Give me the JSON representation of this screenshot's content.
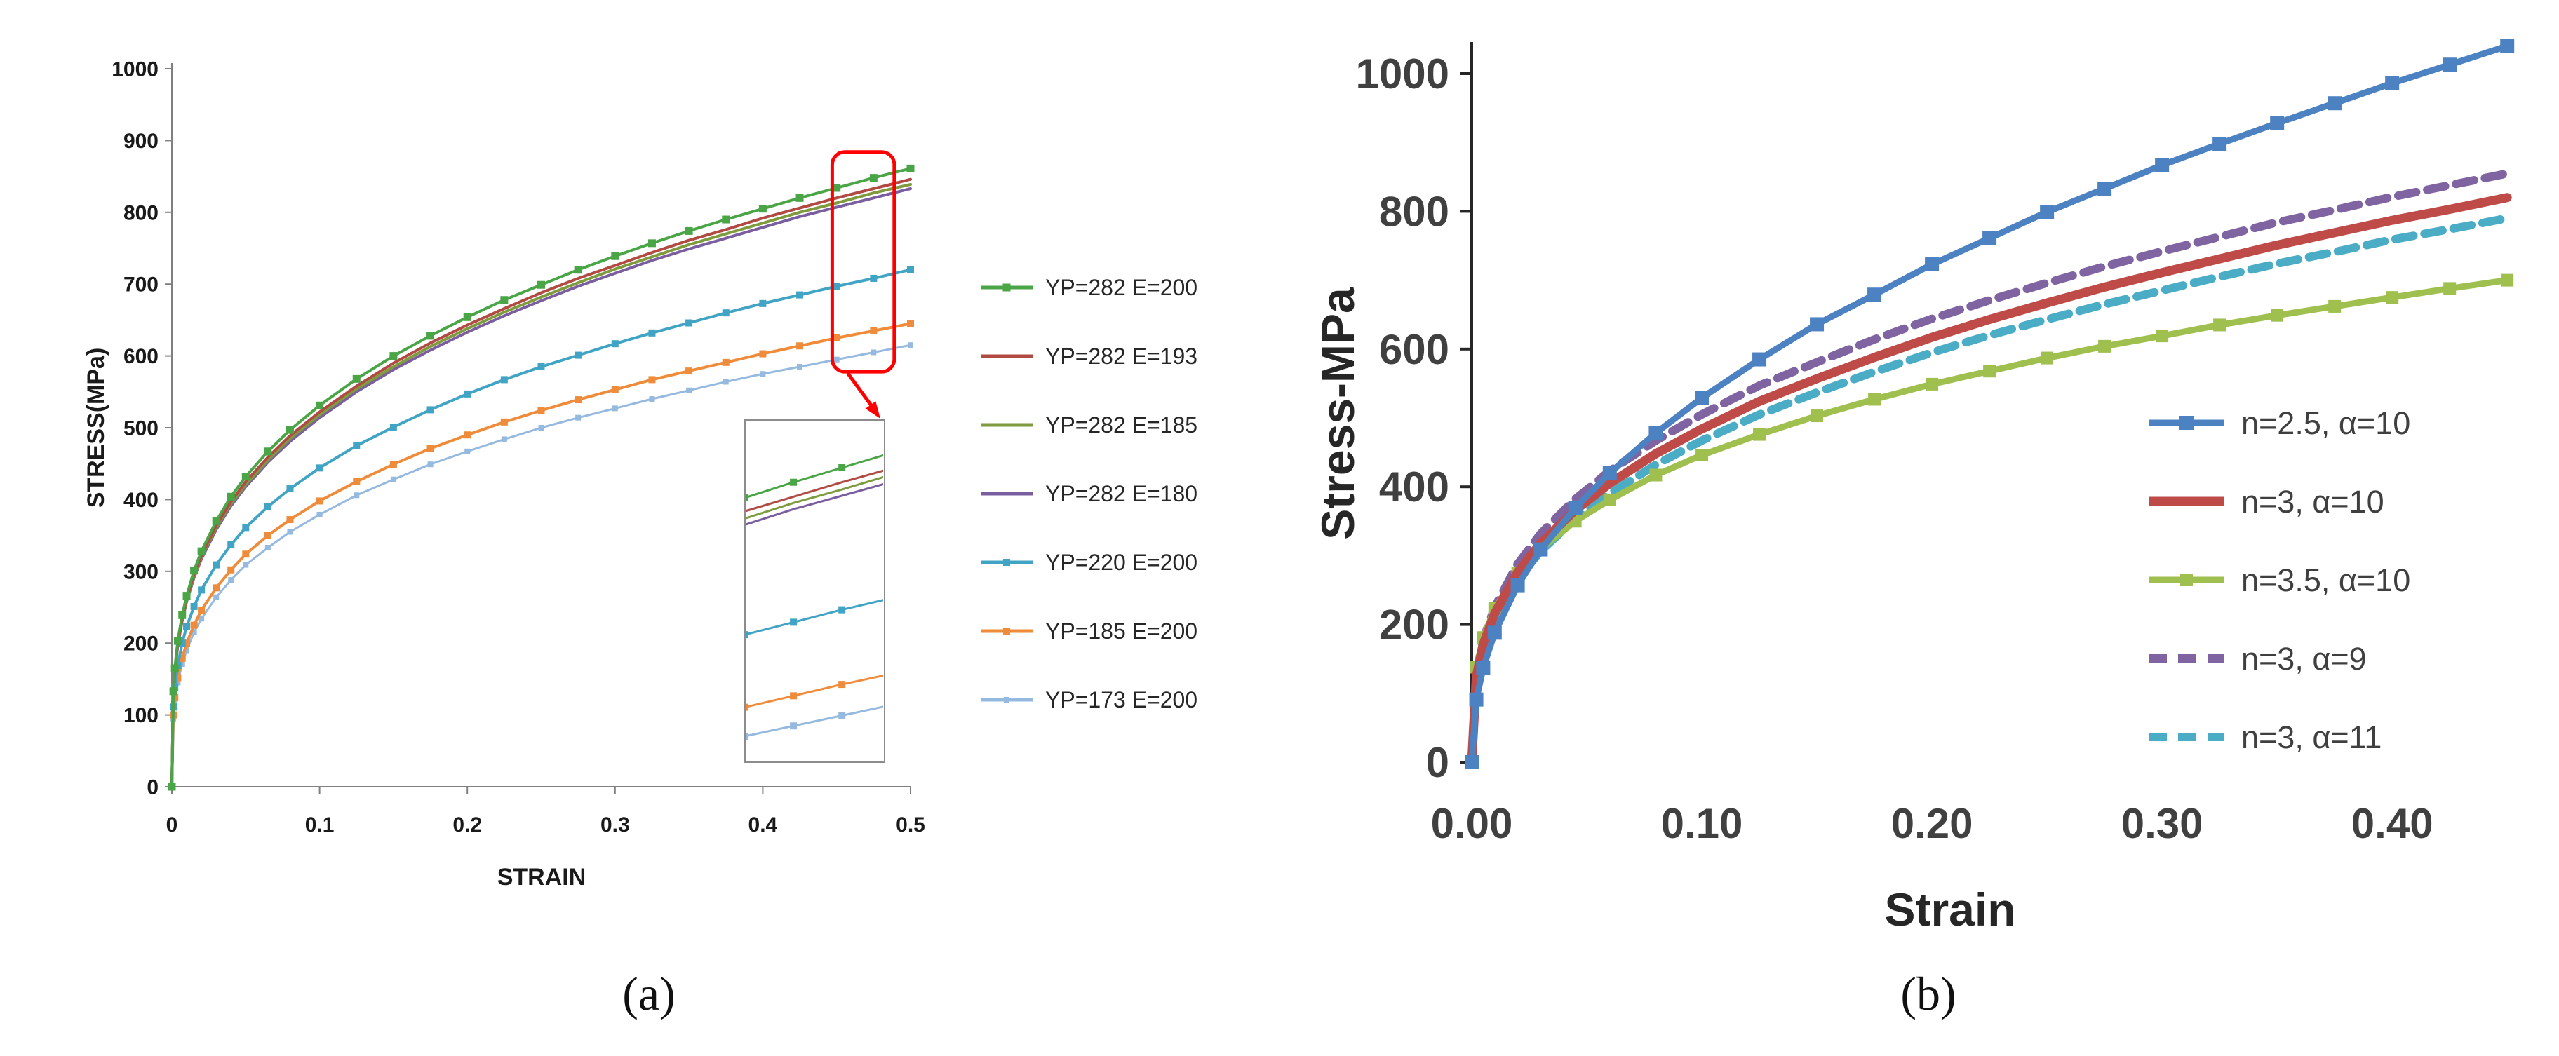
{
  "captions": {
    "a": "(a)",
    "b": "(b)"
  },
  "colors": {
    "background": "#ffffff",
    "callout": "#ff0000",
    "axis_a": "#808080",
    "axis_b": "#262626"
  },
  "chart_data": [
    {
      "id": "a",
      "type": "line",
      "title": "",
      "xlabel": "STRAIN",
      "ylabel": "STRESS(MPa)",
      "xlim": [
        0,
        0.5
      ],
      "ylim": [
        0,
        1000
      ],
      "grid": false,
      "legend_position": "right-outside",
      "xticks": {
        "values": [
          0,
          0.1,
          0.2,
          0.3,
          0.4,
          0.5
        ],
        "labels": [
          "0",
          "0.1",
          "0.2",
          "0.3",
          "0.4",
          "0.5"
        ]
      },
      "yticks": {
        "values": [
          0,
          100,
          200,
          300,
          400,
          500,
          600,
          700,
          800,
          900,
          1000
        ],
        "labels": [
          "0",
          "100",
          "200",
          "300",
          "400",
          "500",
          "600",
          "700",
          "800",
          "900",
          "1000"
        ]
      },
      "x": [
        0,
        0.001,
        0.002,
        0.004,
        0.007,
        0.01,
        0.015,
        0.02,
        0.03,
        0.04,
        0.05,
        0.065,
        0.08,
        0.1,
        0.125,
        0.15,
        0.175,
        0.2,
        0.225,
        0.25,
        0.275,
        0.3,
        0.325,
        0.35,
        0.375,
        0.4,
        0.425,
        0.45,
        0.475,
        0.5
      ],
      "series": [
        {
          "name": "YP=282 E=200",
          "color": "#4aa546",
          "width": 4,
          "marker": "square",
          "marker_size": 11,
          "values": [
            0,
            133,
            165,
            203,
            239,
            266,
            301,
            328,
            370,
            404,
            432,
            467,
            497,
            531,
            568,
            600,
            628,
            654,
            678,
            699,
            720,
            739,
            757,
            774,
            790,
            805,
            820,
            834,
            848,
            861
          ]
        },
        {
          "name": "YP=282 E=193",
          "color": "#b04a42",
          "width": 4,
          "values": [
            0,
            131,
            162,
            199,
            235,
            262,
            296,
            322,
            364,
            397,
            425,
            459,
            489,
            522,
            558,
            590,
            618,
            643,
            666,
            688,
            708,
            726,
            744,
            761,
            776,
            792,
            806,
            820,
            833,
            846
          ]
        },
        {
          "name": "YP=282 E=185",
          "color": "#7e9b3e",
          "width": 4,
          "values": [
            0,
            130,
            161,
            198,
            233,
            260,
            293,
            320,
            361,
            394,
            421,
            455,
            485,
            518,
            554,
            585,
            613,
            638,
            661,
            682,
            702,
            721,
            738,
            755,
            770,
            785,
            800,
            813,
            827,
            839
          ]
        },
        {
          "name": "YP=282 E=180",
          "color": "#7a5ea0",
          "width": 4,
          "values": [
            0,
            129,
            160,
            196,
            231,
            258,
            291,
            317,
            358,
            391,
            418,
            452,
            481,
            514,
            550,
            581,
            608,
            633,
            656,
            677,
            697,
            715,
            733,
            749,
            764,
            779,
            794,
            807,
            820,
            833
          ]
        },
        {
          "name": "YP=220 E=200",
          "color": "#41a4c4",
          "width": 4,
          "marker": "square",
          "marker_size": 10,
          "values": [
            0,
            111,
            138,
            169,
            200,
            223,
            251,
            274,
            309,
            337,
            361,
            390,
            415,
            444,
            475,
            501,
            525,
            547,
            567,
            585,
            601,
            617,
            632,
            646,
            660,
            673,
            685,
            697,
            708,
            720
          ]
        },
        {
          "name": "YP=185 E=200",
          "color": "#ef8c3b",
          "width": 4,
          "marker": "square",
          "marker_size": 10,
          "values": [
            0,
            100,
            124,
            152,
            179,
            200,
            225,
            246,
            277,
            302,
            324,
            350,
            372,
            398,
            425,
            449,
            471,
            490,
            508,
            524,
            539,
            553,
            567,
            579,
            591,
            603,
            614,
            625,
            635,
            645
          ]
        },
        {
          "name": "YP=173 E=200",
          "color": "#96b9e0",
          "width": 3,
          "marker": "square",
          "marker_size": 8,
          "values": [
            0,
            95,
            118,
            145,
            171,
            190,
            215,
            234,
            264,
            288,
            309,
            333,
            355,
            379,
            406,
            428,
            449,
            467,
            484,
            500,
            514,
            527,
            540,
            552,
            564,
            575,
            585,
            595,
            605,
            615
          ]
        }
      ],
      "annotation": {
        "callout_rect": {
          "x0": 0.447,
          "x1": 0.489,
          "y0": 578,
          "y1": 884,
          "color": "#ff0000"
        },
        "inset": {
          "x_range": [
            0.4,
            0.472
          ],
          "y_range": [
            550,
            880
          ]
        }
      }
    },
    {
      "id": "b",
      "type": "line",
      "title": "",
      "xlabel": "Strain",
      "ylabel": "Stress-MPa",
      "xlim": [
        0,
        0.46
      ],
      "ylim": [
        0,
        1000
      ],
      "grid": false,
      "legend_position": "inside-right",
      "xticks": {
        "values": [
          0,
          0.1,
          0.2,
          0.3,
          0.4
        ],
        "labels": [
          "0.00",
          "0.10",
          "0.20",
          "0.30",
          "0.40"
        ]
      },
      "yticks": {
        "values": [
          0,
          200,
          400,
          600,
          800,
          1000
        ],
        "labels": [
          "0",
          "200",
          "400",
          "600",
          "800",
          "1000"
        ]
      },
      "x": [
        0,
        0.002,
        0.005,
        0.01,
        0.02,
        0.03,
        0.045,
        0.06,
        0.08,
        0.1,
        0.125,
        0.15,
        0.175,
        0.2,
        0.225,
        0.25,
        0.275,
        0.3,
        0.325,
        0.35,
        0.375,
        0.4,
        0.425,
        0.45
      ],
      "series": [
        {
          "name": "n=2.5, α=10",
          "color": "#4d82c2",
          "width": 9,
          "marker": "square",
          "marker_size": 20,
          "values": [
            0,
            91,
            137,
            188,
            257,
            309,
            369,
            420,
            478,
            529,
            585,
            636,
            679,
            723,
            761,
            799,
            833,
            867,
            898,
            928,
            957,
            986,
            1013,
            1040
          ]
        },
        {
          "name": "n=3, α=10",
          "color": "#be4b48",
          "width": 13,
          "values": [
            0,
            124,
            171,
            216,
            276,
            318,
            366,
            405,
            448,
            484,
            524,
            557,
            588,
            617,
            643,
            667,
            690,
            711,
            731,
            751,
            769,
            787,
            803,
            820
          ]
        },
        {
          "name": "n=3.5, α=10",
          "color": "#9fbf4e",
          "width": 9,
          "marker": "square",
          "marker_size": 18,
          "values": [
            0,
            138,
            181,
            223,
            275,
            310,
            350,
            381,
            417,
            446,
            476,
            503,
            527,
            549,
            568,
            587,
            604,
            619,
            635,
            649,
            662,
            675,
            688,
            700
          ]
        },
        {
          "name": "n=3, α=9",
          "color": "#8064a2",
          "width": 12,
          "dash": "26 16",
          "values": [
            0,
            129,
            178,
            225,
            288,
            332,
            382,
            423,
            467,
            505,
            547,
            581,
            614,
            644,
            671,
            696,
            720,
            742,
            763,
            784,
            802,
            821,
            838,
            855
          ]
        },
        {
          "name": "n=3, α=11",
          "color": "#4bacc6",
          "width": 12,
          "dash": "26 16",
          "values": [
            0,
            119,
            164,
            208,
            266,
            307,
            353,
            390,
            432,
            467,
            505,
            537,
            567,
            595,
            620,
            643,
            665,
            685,
            705,
            724,
            741,
            759,
            774,
            790
          ]
        }
      ]
    }
  ]
}
